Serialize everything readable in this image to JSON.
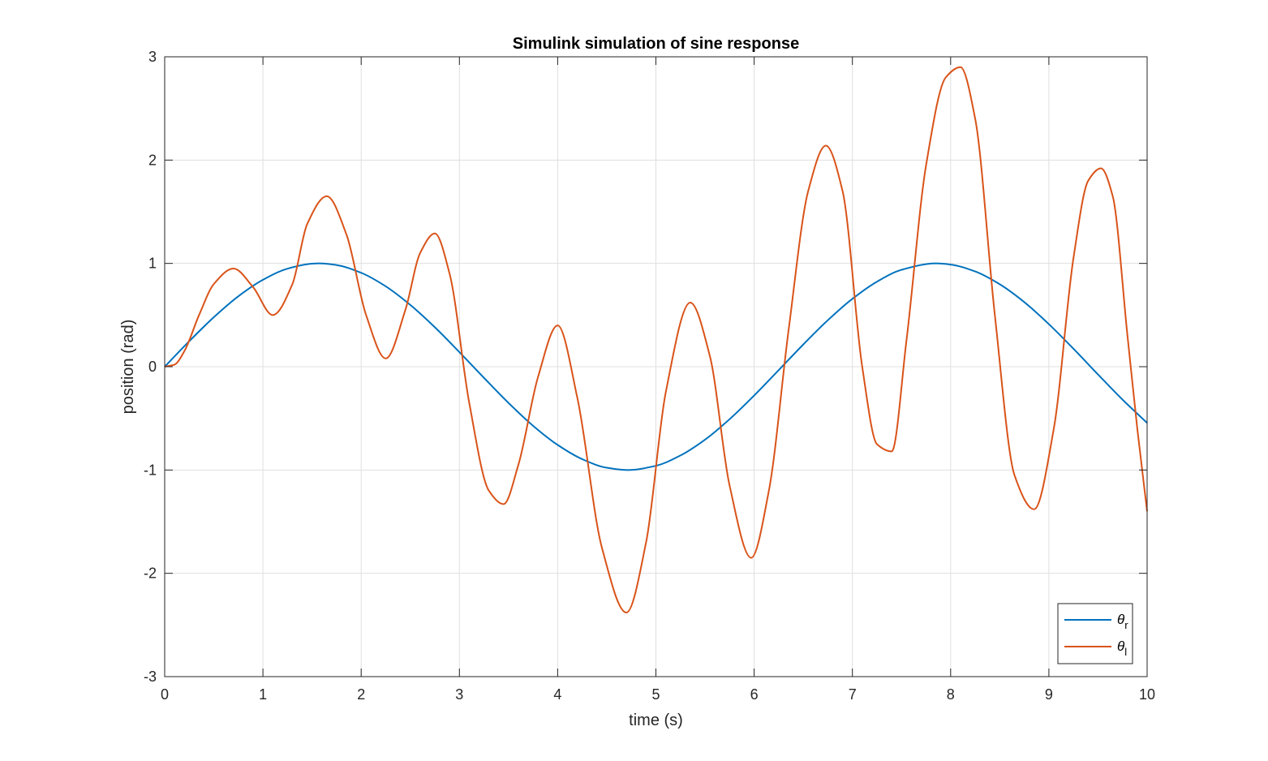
{
  "chart_data": {
    "type": "line",
    "title": "Simulink simulation of sine response",
    "xlabel": "time (s)",
    "ylabel": "position (rad)",
    "xlim": [
      0,
      10
    ],
    "ylim": [
      -3,
      3
    ],
    "xticks": [
      0,
      1,
      2,
      3,
      4,
      5,
      6,
      7,
      8,
      9,
      10
    ],
    "yticks": [
      -3,
      -2,
      -1,
      0,
      1,
      2,
      3
    ],
    "grid": true,
    "legend_position": "bottom-right",
    "series": [
      {
        "name": "θr",
        "label_main": "θ",
        "label_sub": "r",
        "color": "#0072BD",
        "x": [
          0,
          0.25,
          0.5,
          0.75,
          1,
          1.25,
          1.5,
          1.5708,
          1.75,
          2,
          2.25,
          2.5,
          2.75,
          3,
          3.25,
          3.5,
          3.75,
          4,
          4.25,
          4.5,
          4.7124,
          5,
          5.25,
          5.5,
          5.75,
          6,
          6.25,
          6.5,
          6.75,
          7,
          7.25,
          7.5,
          7.854,
          8,
          8.25,
          8.5,
          8.75,
          9,
          9.25,
          9.5,
          9.75,
          10
        ],
        "y": [
          0,
          0.247,
          0.479,
          0.682,
          0.841,
          0.949,
          0.997,
          1,
          0.984,
          0.909,
          0.778,
          0.598,
          0.382,
          0.141,
          -0.108,
          -0.351,
          -0.572,
          -0.757,
          -0.895,
          -0.978,
          -1,
          -0.959,
          -0.859,
          -0.706,
          -0.508,
          -0.279,
          -0.033,
          0.215,
          0.45,
          0.657,
          0.823,
          0.938,
          1,
          0.989,
          0.922,
          0.798,
          0.625,
          0.412,
          0.174,
          -0.075,
          -0.319,
          -0.544
        ]
      },
      {
        "name": "θl",
        "label_main": "θ",
        "label_sub": "l",
        "color": "#D95319",
        "x": [
          0,
          0.1,
          0.2,
          0.35,
          0.5,
          0.7,
          0.9,
          1.1,
          1.3,
          1.45,
          1.65,
          1.85,
          2.05,
          2.25,
          2.45,
          2.6,
          2.75,
          2.9,
          3.1,
          3.3,
          3.45,
          3.6,
          3.8,
          4.0,
          4.2,
          4.45,
          4.7,
          4.9,
          5.1,
          5.35,
          5.55,
          5.75,
          5.97,
          6.15,
          6.35,
          6.55,
          6.73,
          6.9,
          7.1,
          7.25,
          7.4,
          7.55,
          7.75,
          7.95,
          8.1,
          8.25,
          8.45,
          8.65,
          8.85,
          9.05,
          9.25,
          9.4,
          9.53,
          9.65,
          9.8,
          9.9,
          10.0
        ],
        "y": [
          0,
          0.02,
          0.15,
          0.5,
          0.8,
          0.95,
          0.77,
          0.5,
          0.8,
          1.38,
          1.65,
          1.28,
          0.5,
          0.08,
          0.55,
          1.1,
          1.29,
          0.9,
          -0.35,
          -1.2,
          -1.33,
          -0.95,
          -0.1,
          0.4,
          -0.3,
          -1.75,
          -2.38,
          -1.7,
          -0.25,
          0.62,
          0.1,
          -1.15,
          -1.85,
          -1.2,
          0.35,
          1.7,
          2.14,
          1.7,
          0.0,
          -0.75,
          -0.82,
          0.25,
          1.95,
          2.8,
          2.9,
          2.4,
          0.5,
          -1.05,
          -1.38,
          -0.6,
          1.05,
          1.8,
          1.92,
          1.65,
          0.3,
          -0.6,
          -1.4
        ]
      }
    ]
  }
}
